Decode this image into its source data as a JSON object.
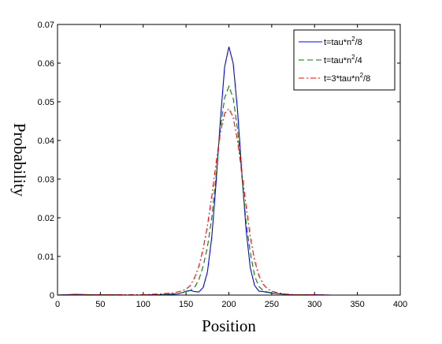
{
  "chart_data": {
    "type": "line",
    "xlabel": "Position",
    "ylabel": "Probability",
    "xlim": [
      0,
      400
    ],
    "ylim": [
      0,
      0.07
    ],
    "xticks": [
      0,
      50,
      100,
      150,
      200,
      250,
      300,
      350,
      400
    ],
    "yticks": [
      0,
      0.01,
      0.02,
      0.03,
      0.04,
      0.05,
      0.06,
      0.07
    ],
    "ytick_labels": [
      "0",
      "0.01",
      "0.02",
      "0.03",
      "0.04",
      "0.05",
      "0.06",
      "0.07"
    ],
    "grid": false,
    "legend_position": "top-right",
    "x": [
      0,
      20,
      40,
      60,
      80,
      100,
      110,
      120,
      130,
      135,
      140,
      145,
      150,
      155,
      160,
      165,
      170,
      175,
      180,
      185,
      190,
      195,
      200,
      205,
      210,
      215,
      220,
      225,
      230,
      235,
      240,
      245,
      250,
      255,
      260,
      265,
      270,
      280,
      300,
      320,
      350,
      380,
      400
    ],
    "series": [
      {
        "legend": [
          "t=tau*n",
          "2",
          "/8"
        ],
        "color": "#0000ff",
        "style": "solid",
        "values": [
          0,
          0.0002,
          0.0001,
          0.0001,
          0,
          0,
          0.0001,
          0.0001,
          0.0002,
          0.0002,
          0.0003,
          0.0006,
          0.001,
          0.0012,
          0.0009,
          0.0008,
          0.002,
          0.006,
          0.015,
          0.029,
          0.045,
          0.059,
          0.0642,
          0.06,
          0.048,
          0.032,
          0.017,
          0.007,
          0.0025,
          0.001,
          0.0009,
          0.0007,
          0.0005,
          0.0004,
          0.0003,
          0.0002,
          0.0001,
          0.0001,
          0.0001,
          0,
          0,
          0,
          0
        ]
      },
      {
        "legend": [
          "t=tau*n",
          "2",
          "/4"
        ],
        "color": "#008000",
        "style": "dashed",
        "values": [
          0,
          0.0001,
          0.0001,
          0.0001,
          0,
          0,
          0.0001,
          0.0001,
          0.0002,
          0.0003,
          0.0004,
          0.0006,
          0.0008,
          0.0012,
          0.002,
          0.004,
          0.0075,
          0.0125,
          0.02,
          0.031,
          0.043,
          0.051,
          0.054,
          0.051,
          0.043,
          0.031,
          0.019,
          0.011,
          0.005,
          0.0022,
          0.0012,
          0.0008,
          0.0006,
          0.0004,
          0.0003,
          0.0002,
          0.0001,
          0.0001,
          0,
          0,
          0,
          0,
          0
        ]
      },
      {
        "legend": [
          "t=3*tau*n",
          "2",
          "/8"
        ],
        "color": "#ff0000",
        "style": "dashdot",
        "values": [
          0,
          0.0001,
          0.0001,
          0.0001,
          0.0001,
          0.0001,
          0.0002,
          0.0003,
          0.0005,
          0.0006,
          0.0008,
          0.0011,
          0.0015,
          0.0025,
          0.0045,
          0.0075,
          0.012,
          0.018,
          0.0255,
          0.034,
          0.042,
          0.047,
          0.0482,
          0.046,
          0.04,
          0.032,
          0.023,
          0.015,
          0.009,
          0.005,
          0.0028,
          0.0016,
          0.001,
          0.0007,
          0.0005,
          0.0003,
          0.0002,
          0.0001,
          0.0001,
          0,
          0,
          0,
          0
        ]
      }
    ]
  }
}
